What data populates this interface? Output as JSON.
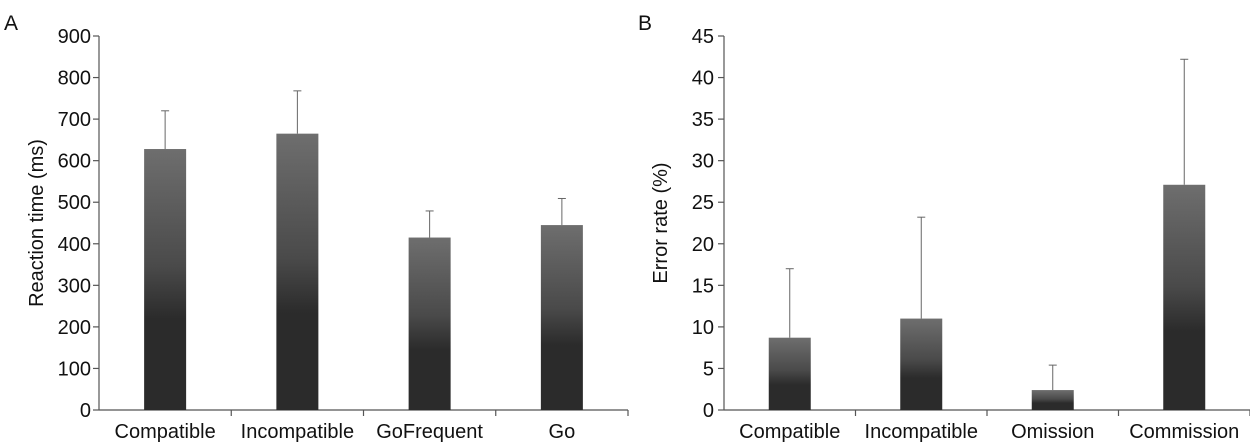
{
  "chart_data": [
    {
      "type": "bar",
      "panel_label": "A",
      "categories": [
        "Compatible",
        "Incompatible",
        "GoFrequent",
        "Go"
      ],
      "values": [
        628,
        665,
        415,
        445
      ],
      "errors": [
        92,
        103,
        64,
        64
      ],
      "ylabel": "Reaction time (ms)",
      "ylim": [
        0,
        900
      ],
      "yticks": [
        0,
        100,
        200,
        300,
        400,
        500,
        600,
        700,
        800,
        900
      ],
      "grid": false,
      "bar_color_top": "#6e6e6e",
      "bar_color_bottom": "#2b2b2b"
    },
    {
      "type": "bar",
      "panel_label": "B",
      "categories": [
        "Compatible",
        "Incompatible",
        "Omission",
        "Commission"
      ],
      "values": [
        8.7,
        11.0,
        2.4,
        27.1
      ],
      "errors": [
        8.3,
        12.2,
        3.0,
        15.1
      ],
      "ylabel": "Error rate (%)",
      "ylim": [
        0,
        45
      ],
      "yticks": [
        0,
        5,
        10,
        15,
        20,
        25,
        30,
        35,
        40,
        45
      ],
      "grid": false,
      "bar_color_top": "#6e6e6e",
      "bar_color_bottom": "#2b2b2b"
    }
  ]
}
